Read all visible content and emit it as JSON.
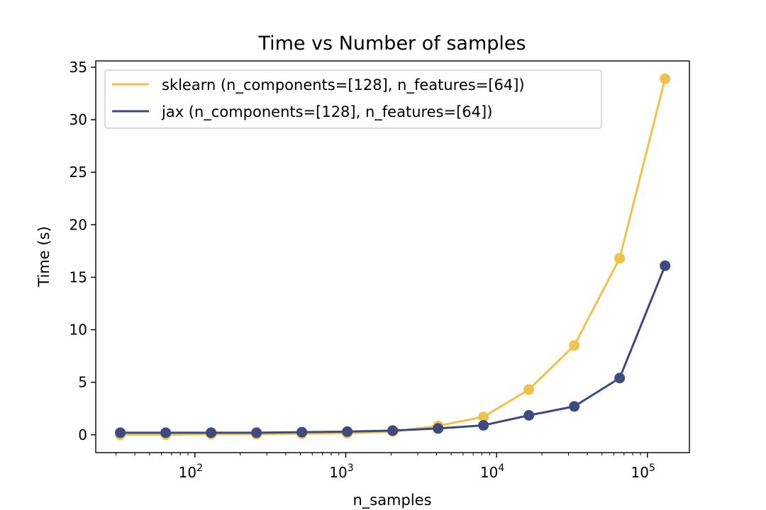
{
  "chart_data": {
    "type": "line",
    "title": "Time vs Number of samples",
    "xlabel": "n_samples",
    "ylabel": "Time (s)",
    "xscale": "log",
    "xlim": [
      22,
      190000
    ],
    "ylim": [
      -1.7,
      35.6
    ],
    "x_ticks": [
      {
        "value": 100,
        "base": "10",
        "exp": "2"
      },
      {
        "value": 1000,
        "base": "10",
        "exp": "3"
      },
      {
        "value": 10000,
        "base": "10",
        "exp": "4"
      },
      {
        "value": 100000,
        "base": "10",
        "exp": "5"
      }
    ],
    "y_ticks": [
      {
        "value": 0,
        "label": "0"
      },
      {
        "value": 5,
        "label": "5"
      },
      {
        "value": 10,
        "label": "10"
      },
      {
        "value": 15,
        "label": "15"
      },
      {
        "value": 20,
        "label": "20"
      },
      {
        "value": 25,
        "label": "25"
      },
      {
        "value": 30,
        "label": "30"
      },
      {
        "value": 35,
        "label": "35"
      }
    ],
    "x": [
      32,
      64,
      128,
      256,
      512,
      1024,
      2048,
      4096,
      8192,
      16384,
      32768,
      65536,
      131072
    ],
    "series": [
      {
        "name": "sklearn (n_components=[128], n_features=[64])",
        "color": "#f0c24b",
        "values": [
          0.0,
          0.0,
          0.05,
          0.05,
          0.1,
          0.15,
          0.3,
          0.85,
          1.7,
          4.3,
          8.5,
          16.8,
          33.9
        ]
      },
      {
        "name": "jax (n_components=[128], n_features=[64])",
        "color": "#3d4b81",
        "values": [
          0.2,
          0.2,
          0.2,
          0.2,
          0.25,
          0.3,
          0.4,
          0.6,
          0.9,
          1.85,
          2.7,
          5.4,
          16.1
        ]
      }
    ],
    "legend_position": "top-left",
    "grid": false
  }
}
